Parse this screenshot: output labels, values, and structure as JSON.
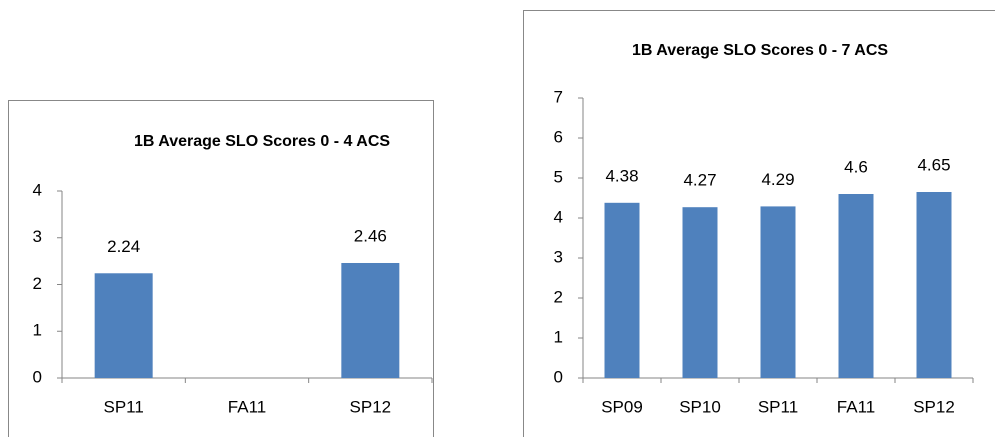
{
  "chart_data": [
    {
      "type": "bar",
      "title": "1B Average SLO Scores 0 - 4 ACS",
      "categories": [
        "SP11",
        "FA11",
        "SP12"
      ],
      "values": [
        2.24,
        null,
        2.46
      ],
      "color": "#4f81bd",
      "ylim": [
        0,
        4
      ],
      "yticks": [
        0,
        1,
        2,
        3,
        4
      ],
      "grid": false
    },
    {
      "type": "bar",
      "title": "1B Average SLO Scores 0 - 7 ACS",
      "categories": [
        "SP09",
        "SP10",
        "SP11",
        "FA11",
        "SP12"
      ],
      "values": [
        4.38,
        4.27,
        4.29,
        4.6,
        4.65
      ],
      "color": "#4f81bd",
      "ylim": [
        0,
        7
      ],
      "yticks": [
        0,
        1,
        2,
        3,
        4,
        5,
        6,
        7
      ],
      "grid": false
    }
  ]
}
